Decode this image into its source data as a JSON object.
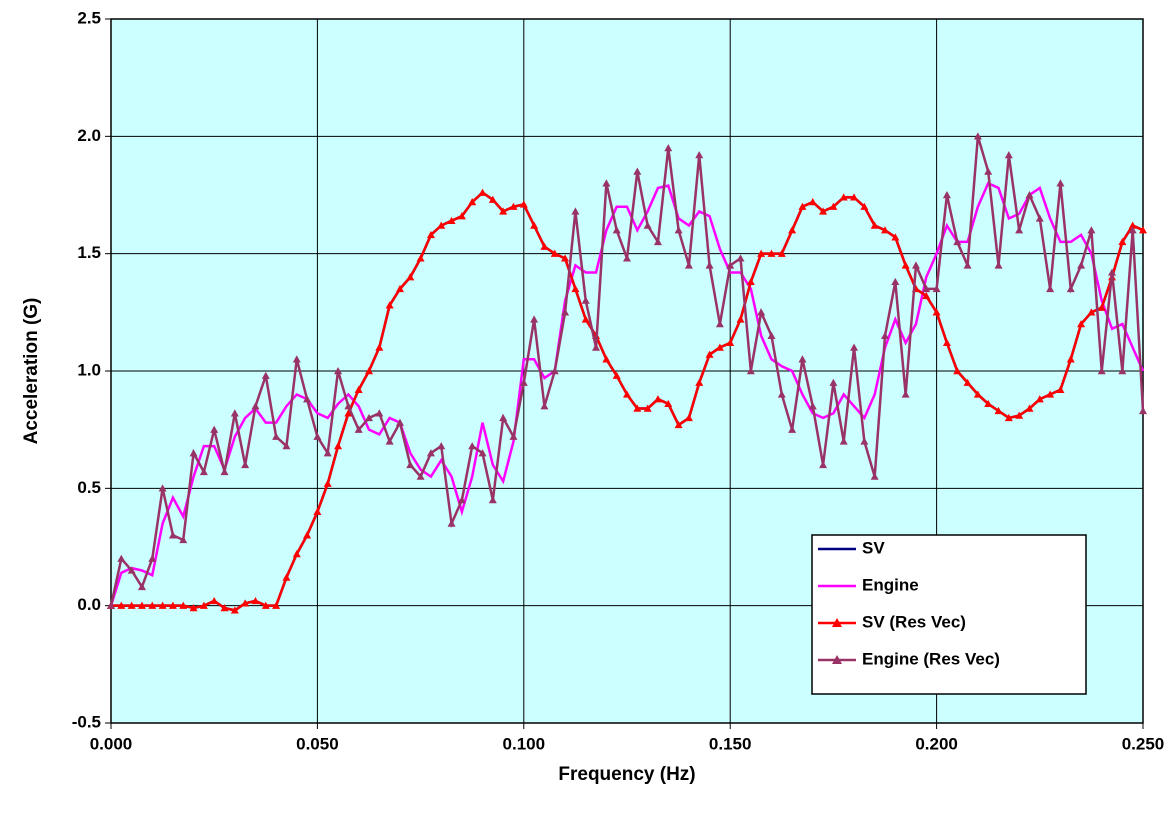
{
  "chart_data": {
    "type": "line",
    "xlabel": "Frequency (Hz)",
    "ylabel": "Acceleration (G)",
    "xlim": [
      0,
      0.25
    ],
    "ylim": [
      -0.5,
      2.5
    ],
    "xticks": [
      {
        "value": 0,
        "label": "0.000"
      },
      {
        "value": 0.05,
        "label": "0.050"
      },
      {
        "value": 0.1,
        "label": "0.100"
      },
      {
        "value": 0.15,
        "label": "0.150"
      },
      {
        "value": 0.2,
        "label": "0.200"
      },
      {
        "value": 0.25,
        "label": "0.250"
      }
    ],
    "yticks": [
      {
        "value": -0.5,
        "label": "-0.5"
      },
      {
        "value": 0,
        "label": "0.0"
      },
      {
        "value": 0.5,
        "label": "0.5"
      },
      {
        "value": 1,
        "label": "1.0"
      },
      {
        "value": 1.5,
        "label": "1.5"
      },
      {
        "value": 2,
        "label": "2.0"
      },
      {
        "value": 2.5,
        "label": "2.5"
      }
    ],
    "grid": true,
    "legend": "lower right",
    "background": "#ccffff",
    "x": [
      0,
      0.0025,
      0.005,
      0.0075,
      0.01,
      0.0125,
      0.015,
      0.0175,
      0.02,
      0.0225,
      0.025,
      0.0275,
      0.03,
      0.0325,
      0.035,
      0.0375,
      0.04,
      0.0425,
      0.045,
      0.0475,
      0.05,
      0.0525,
      0.055,
      0.0575,
      0.06,
      0.0625,
      0.065,
      0.0675,
      0.07,
      0.0725,
      0.075,
      0.0775,
      0.08,
      0.0825,
      0.085,
      0.0875,
      0.09,
      0.0925,
      0.095,
      0.0975,
      0.1,
      0.1025,
      0.105,
      0.1075,
      0.11,
      0.1125,
      0.115,
      0.1175,
      0.12,
      0.1225,
      0.125,
      0.1275,
      0.13,
      0.1325,
      0.135,
      0.1375,
      0.14,
      0.1425,
      0.145,
      0.1475,
      0.15,
      0.1525,
      0.155,
      0.1575,
      0.16,
      0.1625,
      0.165,
      0.1675,
      0.17,
      0.1725,
      0.175,
      0.1775,
      0.18,
      0.1825,
      0.185,
      0.1875,
      0.19,
      0.1925,
      0.195,
      0.1975,
      0.2,
      0.2025,
      0.205,
      0.2075,
      0.21,
      0.2125,
      0.215,
      0.2175,
      0.22,
      0.2225,
      0.225,
      0.2275,
      0.23,
      0.2325,
      0.235,
      0.2375,
      0.24,
      0.2425,
      0.245,
      0.2475,
      0.25
    ],
    "series": [
      {
        "name": "SV",
        "color": "#000080",
        "marker": "none",
        "values": [
          0,
          0,
          0,
          0,
          0,
          0,
          0,
          0,
          -0.01,
          0,
          0.02,
          -0.01,
          -0.02,
          0.01,
          0.02,
          0,
          0,
          0.12,
          0.22,
          0.3,
          0.4,
          0.52,
          0.68,
          0.82,
          0.92,
          1.0,
          1.1,
          1.28,
          1.35,
          1.4,
          1.48,
          1.58,
          1.62,
          1.64,
          1.66,
          1.72,
          1.76,
          1.73,
          1.68,
          1.7,
          1.71,
          1.62,
          1.53,
          1.5,
          1.48,
          1.35,
          1.22,
          1.15,
          1.05,
          0.98,
          0.9,
          0.84,
          0.84,
          0.88,
          0.86,
          0.77,
          0.8,
          0.95,
          1.07,
          1.1,
          1.12,
          1.22,
          1.38,
          1.5,
          1.5,
          1.5,
          1.6,
          1.7,
          1.72,
          1.68,
          1.7,
          1.74,
          1.74,
          1.7,
          1.62,
          1.6,
          1.57,
          1.45,
          1.35,
          1.32,
          1.25,
          1.12,
          1.0,
          0.95,
          0.9,
          0.86,
          0.83,
          0.8,
          0.81,
          0.84,
          0.88,
          0.9,
          0.92,
          1.05,
          1.2,
          1.25,
          1.27,
          1.4,
          1.55,
          1.62,
          1.6
        ]
      },
      {
        "name": "Engine",
        "color": "#ff00ff",
        "marker": "none",
        "values": [
          0,
          0.14,
          0.16,
          0.15,
          0.13,
          0.35,
          0.46,
          0.38,
          0.55,
          0.68,
          0.68,
          0.58,
          0.72,
          0.8,
          0.84,
          0.78,
          0.78,
          0.85,
          0.9,
          0.88,
          0.82,
          0.8,
          0.86,
          0.9,
          0.85,
          0.75,
          0.73,
          0.8,
          0.78,
          0.65,
          0.58,
          0.55,
          0.62,
          0.55,
          0.4,
          0.55,
          0.78,
          0.6,
          0.53,
          0.7,
          1.05,
          1.05,
          0.97,
          1.0,
          1.3,
          1.45,
          1.42,
          1.42,
          1.6,
          1.7,
          1.7,
          1.6,
          1.68,
          1.78,
          1.79,
          1.65,
          1.62,
          1.68,
          1.66,
          1.52,
          1.42,
          1.42,
          1.35,
          1.15,
          1.05,
          1.02,
          1.0,
          0.9,
          0.82,
          0.8,
          0.82,
          0.9,
          0.85,
          0.8,
          0.9,
          1.1,
          1.22,
          1.12,
          1.2,
          1.4,
          1.5,
          1.62,
          1.55,
          1.55,
          1.7,
          1.8,
          1.78,
          1.65,
          1.67,
          1.75,
          1.78,
          1.65,
          1.55,
          1.55,
          1.58,
          1.5,
          1.3,
          1.18,
          1.2,
          1.1,
          1.0
        ]
      },
      {
        "name": "SV (Res Vec)",
        "color": "#ff0000",
        "marker": "triangle",
        "values": [
          0,
          0,
          0,
          0,
          0,
          0,
          0,
          0,
          -0.01,
          0,
          0.02,
          -0.01,
          -0.02,
          0.01,
          0.02,
          0,
          0,
          0.12,
          0.22,
          0.3,
          0.4,
          0.52,
          0.68,
          0.82,
          0.92,
          1.0,
          1.1,
          1.28,
          1.35,
          1.4,
          1.48,
          1.58,
          1.62,
          1.64,
          1.66,
          1.72,
          1.76,
          1.73,
          1.68,
          1.7,
          1.71,
          1.62,
          1.53,
          1.5,
          1.48,
          1.35,
          1.22,
          1.15,
          1.05,
          0.98,
          0.9,
          0.84,
          0.84,
          0.88,
          0.86,
          0.77,
          0.8,
          0.95,
          1.07,
          1.1,
          1.12,
          1.22,
          1.38,
          1.5,
          1.5,
          1.5,
          1.6,
          1.7,
          1.72,
          1.68,
          1.7,
          1.74,
          1.74,
          1.7,
          1.62,
          1.6,
          1.57,
          1.45,
          1.35,
          1.32,
          1.25,
          1.12,
          1.0,
          0.95,
          0.9,
          0.86,
          0.83,
          0.8,
          0.81,
          0.84,
          0.88,
          0.9,
          0.92,
          1.05,
          1.2,
          1.25,
          1.27,
          1.4,
          1.55,
          1.62,
          1.6
        ]
      },
      {
        "name": "Engine (Res Vec)",
        "color": "#993366",
        "marker": "triangle",
        "values": [
          0,
          0.2,
          0.15,
          0.08,
          0.2,
          0.5,
          0.3,
          0.28,
          0.65,
          0.57,
          0.75,
          0.57,
          0.82,
          0.6,
          0.85,
          0.98,
          0.72,
          0.68,
          1.05,
          0.88,
          0.72,
          0.65,
          1.0,
          0.85,
          0.75,
          0.8,
          0.82,
          0.7,
          0.78,
          0.6,
          0.55,
          0.65,
          0.68,
          0.35,
          0.45,
          0.68,
          0.65,
          0.45,
          0.8,
          0.72,
          0.95,
          1.22,
          0.85,
          1.0,
          1.25,
          1.68,
          1.3,
          1.1,
          1.8,
          1.6,
          1.48,
          1.85,
          1.62,
          1.55,
          1.95,
          1.6,
          1.45,
          1.92,
          1.45,
          1.2,
          1.45,
          1.48,
          1.0,
          1.25,
          1.15,
          0.9,
          0.75,
          1.05,
          0.85,
          0.6,
          0.95,
          0.7,
          1.1,
          0.7,
          0.55,
          1.15,
          1.38,
          0.9,
          1.45,
          1.35,
          1.35,
          1.75,
          1.55,
          1.45,
          2.0,
          1.85,
          1.45,
          1.92,
          1.6,
          1.75,
          1.65,
          1.35,
          1.8,
          1.35,
          1.45,
          1.6,
          1.0,
          1.42,
          1.0,
          1.6,
          0.83
        ]
      }
    ]
  }
}
